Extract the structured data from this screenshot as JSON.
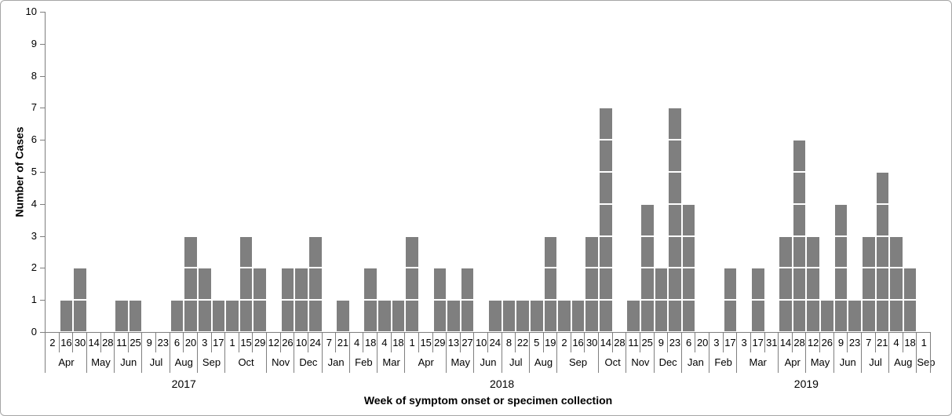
{
  "chart_data": {
    "type": "bar",
    "title": "",
    "ylabel": "Number of Cases",
    "xlabel": "Week of symptom onset or specimen collection",
    "ylim": [
      0,
      10
    ],
    "yticks": [
      0,
      1,
      2,
      3,
      4,
      5,
      6,
      7,
      8,
      9,
      10
    ],
    "grid": false,
    "legend": "none",
    "bar_color": "#7f7f7f",
    "bar_cell_border_color": "#ffffff",
    "axis_line_color": "#7f7f7f",
    "text_color": "#000000",
    "frame_border_color": "#a6a6a6",
    "bar_style": "stacked-unit-cells",
    "x_axis_levels": [
      "day",
      "month",
      "year"
    ],
    "years": [
      {
        "label": "2017",
        "months": [
          {
            "label": "Apr",
            "points": [
              {
                "day": "2",
                "value": 0
              },
              {
                "day": "16",
                "value": 1
              },
              {
                "day": "30",
                "value": 2
              }
            ]
          },
          {
            "label": "May",
            "points": [
              {
                "day": "14",
                "value": 0
              },
              {
                "day": "28",
                "value": 0
              }
            ]
          },
          {
            "label": "Jun",
            "points": [
              {
                "day": "11",
                "value": 1
              },
              {
                "day": "25",
                "value": 1
              }
            ]
          },
          {
            "label": "Jul",
            "points": [
              {
                "day": "9",
                "value": 0
              },
              {
                "day": "23",
                "value": 0
              }
            ]
          },
          {
            "label": "Aug",
            "points": [
              {
                "day": "6",
                "value": 1
              },
              {
                "day": "20",
                "value": 3
              }
            ]
          },
          {
            "label": "Sep",
            "points": [
              {
                "day": "3",
                "value": 2
              },
              {
                "day": "17",
                "value": 1
              }
            ]
          },
          {
            "label": "Oct",
            "points": [
              {
                "day": "1",
                "value": 1
              },
              {
                "day": "15",
                "value": 3
              },
              {
                "day": "29",
                "value": 2
              }
            ]
          },
          {
            "label": "Nov",
            "points": [
              {
                "day": "12",
                "value": 0
              },
              {
                "day": "26",
                "value": 2
              }
            ]
          },
          {
            "label": "Dec",
            "points": [
              {
                "day": "10",
                "value": 2
              },
              {
                "day": "24",
                "value": 3
              }
            ]
          }
        ]
      },
      {
        "label": "2018",
        "months": [
          {
            "label": "Jan",
            "points": [
              {
                "day": "7",
                "value": 0
              },
              {
                "day": "21",
                "value": 1
              }
            ]
          },
          {
            "label": "Feb",
            "points": [
              {
                "day": "4",
                "value": 0
              },
              {
                "day": "18",
                "value": 2
              }
            ]
          },
          {
            "label": "Mar",
            "points": [
              {
                "day": "4",
                "value": 1
              },
              {
                "day": "18",
                "value": 1
              }
            ]
          },
          {
            "label": "Apr",
            "points": [
              {
                "day": "1",
                "value": 3
              },
              {
                "day": "15",
                "value": 0
              },
              {
                "day": "29",
                "value": 2
              }
            ]
          },
          {
            "label": "May",
            "points": [
              {
                "day": "13",
                "value": 1
              },
              {
                "day": "27",
                "value": 2
              }
            ]
          },
          {
            "label": "Jun",
            "points": [
              {
                "day": "10",
                "value": 0
              },
              {
                "day": "24",
                "value": 1
              }
            ]
          },
          {
            "label": "Jul",
            "points": [
              {
                "day": "8",
                "value": 1
              },
              {
                "day": "22",
                "value": 1
              }
            ]
          },
          {
            "label": "Aug",
            "points": [
              {
                "day": "5",
                "value": 1
              },
              {
                "day": "19",
                "value": 3
              }
            ]
          },
          {
            "label": "Sep",
            "points": [
              {
                "day": "2",
                "value": 1
              },
              {
                "day": "16",
                "value": 1
              },
              {
                "day": "30",
                "value": 3
              }
            ]
          },
          {
            "label": "Oct",
            "points": [
              {
                "day": "14",
                "value": 7
              },
              {
                "day": "28",
                "value": 0
              }
            ]
          },
          {
            "label": "Nov",
            "points": [
              {
                "day": "11",
                "value": 1
              },
              {
                "day": "25",
                "value": 4
              }
            ]
          },
          {
            "label": "Dec",
            "points": [
              {
                "day": "9",
                "value": 2
              },
              {
                "day": "23",
                "value": 7
              }
            ]
          }
        ]
      },
      {
        "label": "2019",
        "months": [
          {
            "label": "Jan",
            "points": [
              {
                "day": "6",
                "value": 4
              },
              {
                "day": "20",
                "value": 0
              }
            ]
          },
          {
            "label": "Feb",
            "points": [
              {
                "day": "3",
                "value": 0
              },
              {
                "day": "17",
                "value": 2
              }
            ]
          },
          {
            "label": "Mar",
            "points": [
              {
                "day": "3",
                "value": 0
              },
              {
                "day": "17",
                "value": 2
              },
              {
                "day": "31",
                "value": 0
              }
            ]
          },
          {
            "label": "Apr",
            "points": [
              {
                "day": "14",
                "value": 3
              },
              {
                "day": "28",
                "value": 6
              }
            ]
          },
          {
            "label": "May",
            "points": [
              {
                "day": "12",
                "value": 3
              },
              {
                "day": "26",
                "value": 1
              }
            ]
          },
          {
            "label": "Jun",
            "points": [
              {
                "day": "9",
                "value": 4
              },
              {
                "day": "23",
                "value": 1
              }
            ]
          },
          {
            "label": "Jul",
            "points": [
              {
                "day": "7",
                "value": 3
              },
              {
                "day": "21",
                "value": 5
              }
            ]
          },
          {
            "label": "Aug",
            "points": [
              {
                "day": "4",
                "value": 3
              },
              {
                "day": "18",
                "value": 2
              }
            ]
          },
          {
            "label": "Sep",
            "points": [
              {
                "day": "1",
                "value": 0
              }
            ]
          }
        ]
      }
    ]
  }
}
